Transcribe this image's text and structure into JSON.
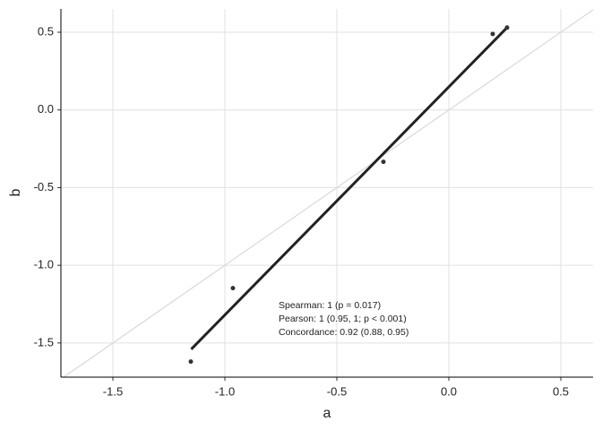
{
  "chart_data": {
    "type": "scatter",
    "x_label": "a",
    "y_label": "b",
    "x": [
      -1.152,
      -0.964,
      -0.292,
      0.196,
      0.26
    ],
    "values": [
      -1.62,
      -1.147,
      -0.334,
      0.489,
      0.53
    ],
    "color": "#333333",
    "fit": {
      "x": [
        -1.15,
        0.26
      ],
      "y": [
        -1.54,
        0.53
      ],
      "color": "#222222"
    },
    "identity_color": "#d9d9d9",
    "annotations": [
      "Spearman: 1 (p = 0.017)",
      "Pearson: 1 (0.95, 1; p < 0.001)",
      "Concordance: 0.92 (0.88, 0.95)"
    ],
    "xlim": [
      -1.732,
      0.644
    ],
    "ylim": [
      -1.72,
      0.65
    ],
    "xticks": [
      -1.5,
      {
        "value": -1,
        "label": "-1.0"
      },
      -0.5,
      {
        "value": 0,
        "label": "0.0"
      },
      0.5
    ],
    "yticks": [
      -1.5,
      {
        "value": -1,
        "label": "-1.0"
      },
      -0.5,
      {
        "value": 0,
        "label": "0.0"
      },
      0.5
    ],
    "grid": true
  }
}
